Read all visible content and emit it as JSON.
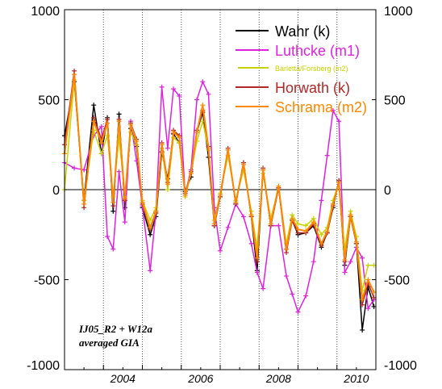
{
  "chart_data": {
    "type": "line",
    "xlim": [
      2003.0,
      2011.0
    ],
    "ylim": [
      -1000,
      1000
    ],
    "yticks": [
      1000,
      500,
      0,
      -500,
      -1000
    ],
    "yticks_right": [
      1000,
      500,
      0,
      -500,
      -1000
    ],
    "xticks": [
      2004,
      2006,
      2008,
      2010
    ],
    "grid": {
      "vertical_dotted_at_years": true,
      "zero_line": true
    },
    "legend_position": "top-right",
    "annotation": [
      "IJ05_R2 + W12a",
      "averaged GIA"
    ],
    "series": [
      {
        "name": "Wahr (k)",
        "color": "#000000",
        "legend_size": "large",
        "x": [
          2003.0,
          2003.25,
          2003.5,
          2003.75,
          2003.95,
          2004.1,
          2004.25,
          2004.4,
          2004.55,
          2004.7,
          2004.85,
          2005.0,
          2005.2,
          2005.35,
          2005.5,
          2005.65,
          2005.8,
          2005.95,
          2006.1,
          2006.25,
          2006.4,
          2006.55,
          2006.7,
          2006.85,
          2007.0,
          2007.2,
          2007.4,
          2007.6,
          2007.8,
          2007.95,
          2008.1,
          2008.3,
          2008.5,
          2008.7,
          2008.85,
          2009.0,
          2009.2,
          2009.4,
          2009.6,
          2009.75,
          2009.9,
          2010.05,
          2010.2,
          2010.35,
          2010.5,
          2010.65,
          2010.8,
          2010.95
        ],
        "y": [
          300,
          600,
          -60,
          470,
          200,
          400,
          -120,
          420,
          -100,
          340,
          240,
          -100,
          -250,
          -150,
          210,
          60,
          310,
          260,
          -10,
          70,
          320,
          430,
          180,
          -200,
          -40,
          220,
          -80,
          150,
          -150,
          -450,
          110,
          -200,
          10,
          -330,
          -170,
          -250,
          -240,
          -200,
          -320,
          -240,
          -100,
          50,
          -420,
          -150,
          -300,
          -780,
          -540,
          -650
        ]
      },
      {
        "name": "Luthcke (m1)",
        "color": "#dd22dd",
        "legend_size": "large",
        "x": [
          2003.0,
          2003.25,
          2003.5,
          2003.75,
          2003.95,
          2004.1,
          2004.25,
          2004.4,
          2004.55,
          2004.7,
          2004.85,
          2005.0,
          2005.2,
          2005.35,
          2005.5,
          2005.65,
          2005.8,
          2005.95,
          2006.1,
          2006.25,
          2006.4,
          2006.55,
          2006.7,
          2006.85,
          2007.0,
          2007.2,
          2007.4,
          2007.6,
          2007.8,
          2007.95,
          2008.1,
          2008.3,
          2008.5,
          2008.7,
          2008.85,
          2009.0,
          2009.2,
          2009.4,
          2009.6,
          2009.75,
          2009.9,
          2010.05,
          2010.2,
          2010.35,
          2010.5,
          2010.65,
          2010.8,
          2010.95
        ],
        "y": [
          150,
          120,
          110,
          300,
          350,
          -260,
          -330,
          100,
          -180,
          380,
          160,
          -90,
          -450,
          -120,
          570,
          230,
          560,
          520,
          -30,
          110,
          500,
          600,
          530,
          -100,
          -340,
          -210,
          -80,
          -150,
          -300,
          -460,
          -550,
          -200,
          -200,
          -480,
          -580,
          -680,
          -590,
          -400,
          -60,
          190,
          440,
          380,
          -460,
          -400,
          -320,
          -380,
          -660,
          -610
        ]
      },
      {
        "name": "Barletta/Forsberg (m2)",
        "color": "#c8d200",
        "legend_size": "small",
        "x": [
          2003.0,
          2003.25,
          2003.5,
          2003.75,
          2003.95,
          2004.1,
          2004.25,
          2004.4,
          2004.55,
          2004.7,
          2004.85,
          2005.0,
          2005.2,
          2005.35,
          2005.5,
          2005.65,
          2005.8,
          2005.95,
          2006.1,
          2006.25,
          2006.4,
          2006.55,
          2006.7,
          2006.85,
          2007.0,
          2007.2,
          2007.4,
          2007.6,
          2007.8,
          2007.95,
          2008.1,
          2008.3,
          2008.5,
          2008.7,
          2008.85,
          2009.0,
          2009.2,
          2009.4,
          2009.6,
          2009.75,
          2009.9,
          2010.05,
          2010.2,
          2010.35,
          2010.5,
          2010.65,
          2010.8,
          2010.95
        ],
        "y": [
          0,
          610,
          -60,
          330,
          200,
          300,
          -40,
          290,
          -40,
          320,
          250,
          -60,
          -170,
          -100,
          230,
          0,
          290,
          260,
          -40,
          90,
          270,
          380,
          220,
          -170,
          -20,
          190,
          -60,
          110,
          -120,
          -320,
          90,
          -160,
          10,
          -300,
          -140,
          -190,
          -200,
          -160,
          -250,
          -210,
          -60,
          40,
          -330,
          -120,
          -260,
          -560,
          -420,
          -420
        ]
      },
      {
        "name": "Horwath (k)",
        "color": "#b02828",
        "legend_size": "large",
        "x": [
          2003.0,
          2003.25,
          2003.5,
          2003.75,
          2003.95,
          2004.1,
          2004.25,
          2004.4,
          2004.55,
          2004.7,
          2004.85,
          2005.0,
          2005.2,
          2005.35,
          2005.5,
          2005.65,
          2005.8,
          2005.95,
          2006.1,
          2006.25,
          2006.4,
          2006.55,
          2006.7,
          2006.85,
          2007.0,
          2007.2,
          2007.4,
          2007.6,
          2007.8,
          2007.95,
          2008.1,
          2008.3,
          2008.5,
          2008.7,
          2008.85,
          2009.0,
          2009.2,
          2009.4,
          2009.6,
          2009.75,
          2009.9,
          2010.05,
          2010.2,
          2010.35,
          2010.5,
          2010.65,
          2010.8,
          2010.95
        ],
        "y": [
          250,
          660,
          -100,
          400,
          280,
          390,
          -90,
          390,
          -60,
          370,
          280,
          -80,
          -220,
          -130,
          260,
          40,
          330,
          300,
          -20,
          100,
          330,
          440,
          240,
          -200,
          -40,
          230,
          -80,
          150,
          -150,
          -400,
          120,
          -200,
          10,
          -350,
          -170,
          -240,
          -240,
          -190,
          -310,
          -240,
          -90,
          50,
          -400,
          -150,
          -300,
          -640,
          -520,
          -600
        ]
      },
      {
        "name": "Schrama (m2)",
        "color": "#ff8800",
        "legend_size": "large",
        "x": [
          2003.0,
          2003.25,
          2003.5,
          2003.75,
          2003.95,
          2004.1,
          2004.25,
          2004.4,
          2004.55,
          2004.7,
          2004.85,
          2005.0,
          2005.2,
          2005.35,
          2005.5,
          2005.65,
          2005.8,
          2005.95,
          2006.1,
          2006.25,
          2006.4,
          2006.55,
          2006.7,
          2006.85,
          2007.0,
          2007.2,
          2007.4,
          2007.6,
          2007.8,
          2007.95,
          2008.1,
          2008.3,
          2008.5,
          2008.7,
          2008.85,
          2009.0,
          2009.2,
          2009.4,
          2009.6,
          2009.75,
          2009.9,
          2010.05,
          2010.2,
          2010.35,
          2010.5,
          2010.65,
          2010.8,
          2010.95
        ],
        "y": [
          200,
          640,
          -80,
          380,
          260,
          370,
          -70,
          380,
          -50,
          360,
          270,
          -70,
          -210,
          -120,
          250,
          30,
          320,
          290,
          -30,
          90,
          320,
          470,
          230,
          -190,
          -30,
          220,
          -70,
          140,
          -140,
          -380,
          110,
          -190,
          20,
          -330,
          -160,
          -220,
          -230,
          -180,
          -300,
          -230,
          -80,
          40,
          -390,
          -140,
          -290,
          -610,
          -500,
          -570
        ]
      }
    ]
  }
}
